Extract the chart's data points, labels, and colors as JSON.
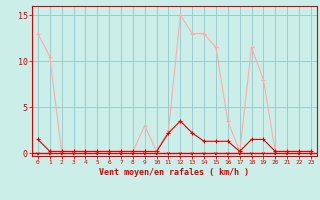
{
  "x": [
    0,
    1,
    2,
    3,
    4,
    5,
    6,
    7,
    8,
    9,
    10,
    11,
    12,
    13,
    14,
    15,
    16,
    17,
    18,
    19,
    20,
    21,
    22,
    23
  ],
  "y_rafales": [
    13.0,
    10.5,
    0.2,
    0.2,
    0.2,
    0.2,
    0.2,
    0.2,
    0.2,
    3.0,
    0.2,
    2.5,
    15.0,
    13.0,
    13.0,
    11.5,
    3.5,
    0.2,
    11.5,
    8.0,
    0.2,
    0.2,
    0.2,
    0.2
  ],
  "y_moyen": [
    1.5,
    0.2,
    0.2,
    0.2,
    0.2,
    0.2,
    0.2,
    0.2,
    0.2,
    0.2,
    0.2,
    2.2,
    3.5,
    2.2,
    1.3,
    1.3,
    1.3,
    0.2,
    1.5,
    1.5,
    0.2,
    0.2,
    0.2,
    0.2
  ],
  "line_color_rafales": "#ffaaaa",
  "line_color_moyen": "#dd0000",
  "bg_color": "#cceee8",
  "grid_color": "#99cccc",
  "axis_color": "#dd0000",
  "xlabel": "Vent moyen/en rafales ( km/h )",
  "xlim": [
    -0.5,
    23.5
  ],
  "ylim": [
    -0.3,
    16
  ],
  "yticks": [
    0,
    5,
    10,
    15
  ],
  "xticks": [
    0,
    1,
    2,
    3,
    4,
    5,
    6,
    7,
    8,
    9,
    10,
    11,
    12,
    13,
    14,
    15,
    16,
    17,
    18,
    19,
    20,
    21,
    22,
    23
  ]
}
